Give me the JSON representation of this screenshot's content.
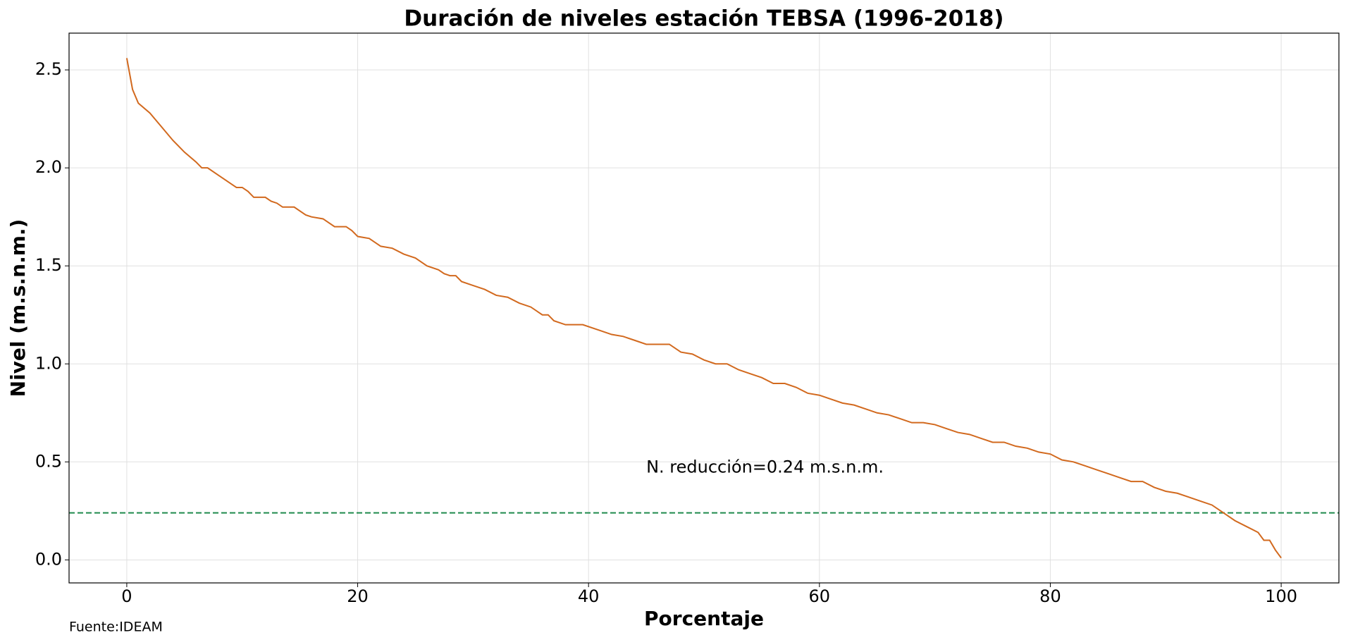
{
  "chart_data": {
    "type": "line",
    "title": "Duración de niveles estación TEBSA (1996-2018)",
    "xlabel": "Porcentaje",
    "ylabel": "Nivel (m.s.n.m.)",
    "source": "Fuente:IDEAM",
    "annotation": {
      "text": "N. reducción=0.24 m.s.n.m.",
      "x": 45,
      "y": 0.47
    },
    "hline": {
      "value": 0.24,
      "color": "#1f8a4c"
    },
    "x": [
      0,
      0.5,
      1,
      2,
      3,
      4,
      5,
      6,
      6.5,
      7,
      8,
      9,
      9.5,
      10,
      10.5,
      11,
      12,
      12.5,
      13,
      13.5,
      14.5,
      15.5,
      16,
      17,
      18,
      19,
      19.5,
      20,
      21,
      22,
      23,
      24,
      25,
      26,
      27,
      27.5,
      28,
      28.5,
      29,
      30,
      31,
      32,
      33,
      34,
      35,
      36,
      36.5,
      37,
      38,
      39.5,
      41,
      42,
      43,
      44,
      45,
      47,
      48,
      49,
      50,
      51,
      52,
      53,
      54,
      55,
      56,
      57,
      58,
      59,
      60,
      61,
      62,
      63,
      64,
      65,
      66,
      67,
      68,
      69,
      70,
      71,
      72,
      73,
      74,
      75,
      76,
      77,
      78,
      79,
      80,
      81,
      82,
      83,
      84,
      85,
      86,
      87,
      88,
      89,
      90,
      91,
      92,
      93,
      94,
      95,
      96,
      97,
      98,
      98.5,
      99,
      99.5,
      100
    ],
    "series": [
      {
        "color": "#d2691e",
        "values": [
          2.56,
          2.4,
          2.33,
          2.28,
          2.21,
          2.14,
          2.08,
          2.03,
          2.0,
          2.0,
          1.96,
          1.92,
          1.9,
          1.9,
          1.88,
          1.85,
          1.85,
          1.83,
          1.82,
          1.8,
          1.8,
          1.76,
          1.75,
          1.74,
          1.7,
          1.7,
          1.68,
          1.65,
          1.64,
          1.6,
          1.59,
          1.56,
          1.54,
          1.5,
          1.48,
          1.46,
          1.45,
          1.45,
          1.42,
          1.4,
          1.38,
          1.35,
          1.34,
          1.31,
          1.29,
          1.25,
          1.25,
          1.22,
          1.2,
          1.2,
          1.17,
          1.15,
          1.14,
          1.12,
          1.1,
          1.1,
          1.06,
          1.05,
          1.02,
          1.0,
          1.0,
          0.97,
          0.95,
          0.93,
          0.9,
          0.9,
          0.88,
          0.85,
          0.84,
          0.82,
          0.8,
          0.79,
          0.77,
          0.75,
          0.74,
          0.72,
          0.7,
          0.7,
          0.69,
          0.67,
          0.65,
          0.64,
          0.62,
          0.6,
          0.6,
          0.58,
          0.57,
          0.55,
          0.54,
          0.51,
          0.5,
          0.48,
          0.46,
          0.44,
          0.42,
          0.4,
          0.4,
          0.37,
          0.35,
          0.34,
          0.32,
          0.3,
          0.28,
          0.24,
          0.2,
          0.17,
          0.14,
          0.1,
          0.1,
          0.05,
          0.01
        ]
      }
    ],
    "xlim": [
      -5,
      105
    ],
    "xticks": [
      0,
      20,
      40,
      60,
      80,
      100
    ],
    "ylim": [
      -0.1175,
      2.6875
    ],
    "yticks": [
      {
        "value": 0,
        "label": "0.0"
      },
      0.5,
      {
        "value": 1,
        "label": "1.0"
      },
      1.5,
      {
        "value": 2,
        "label": "2.0"
      },
      2.5
    ],
    "grid": true
  }
}
